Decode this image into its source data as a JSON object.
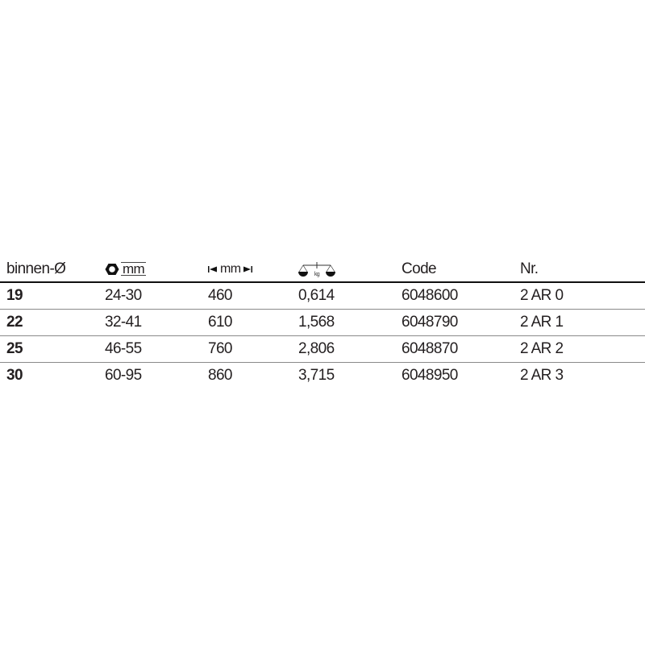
{
  "header": {
    "col0": "binnen-Ø",
    "col1": {
      "icon": "hex-nut-icon",
      "unit": "mm"
    },
    "col2": {
      "icon": "length-arrows-icon",
      "unit": "mm"
    },
    "col3": {
      "icon": "weight-scale-icon",
      "unit": "kg"
    },
    "col4": "Code",
    "col5": "Nr."
  },
  "rows": [
    {
      "diameter": "19",
      "range": "24-30",
      "length": "460",
      "weight": "0,614",
      "code": "6048600",
      "nr": "2 AR 0"
    },
    {
      "diameter": "22",
      "range": "32-41",
      "length": "610",
      "weight": "1,568",
      "code": "6048790",
      "nr": "2 AR 1"
    },
    {
      "diameter": "25",
      "range": "46-55",
      "length": "760",
      "weight": "2,806",
      "code": "6048870",
      "nr": "2 AR 2"
    },
    {
      "diameter": "30",
      "range": "60-95",
      "length": "860",
      "weight": "3,715",
      "code": "6048950",
      "nr": "2 AR 3"
    }
  ]
}
